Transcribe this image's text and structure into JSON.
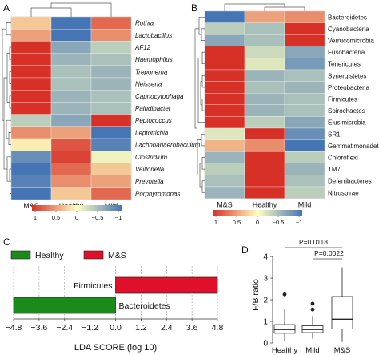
{
  "chart_data": [
    {
      "panel": "A",
      "type": "heatmap",
      "columns": [
        "M&S",
        "Healthy",
        "Mild"
      ],
      "rows": [
        "Rothia",
        "Lactobacillus",
        "AF12",
        "Haemophilus",
        "Treponema",
        "Neisseria",
        "Capnocytophaga",
        "Paludibacter",
        "Peptococcus",
        "Leptotrichia",
        "Lachnoanaerobaculum",
        "Clostridium",
        "Veillonella",
        "Prevotella",
        "Porphyromonas"
      ],
      "values": [
        [
          0.3,
          -1.1,
          0.8
        ],
        [
          0.5,
          -1.1,
          0.6
        ],
        [
          1.1,
          -0.7,
          -0.4
        ],
        [
          1.1,
          -0.6,
          -0.5
        ],
        [
          1.1,
          -0.5,
          -0.6
        ],
        [
          1.1,
          -0.5,
          -0.6
        ],
        [
          1.1,
          -0.6,
          -0.5
        ],
        [
          1.1,
          -0.6,
          -0.5
        ],
        [
          -0.4,
          -0.7,
          1.1
        ],
        [
          0.6,
          0.5,
          -1.1
        ],
        [
          0.1,
          0.9,
          -1.0
        ],
        [
          -0.9,
          1.0,
          -0.1
        ],
        [
          -1.1,
          0.8,
          0.3
        ],
        [
          -1.0,
          0.6,
          0.5
        ],
        [
          -1.1,
          0.3,
          0.8
        ]
      ],
      "legend": {
        "ticks": [
          "1",
          "0.5",
          "0",
          "−0.5",
          "−1"
        ]
      }
    },
    {
      "panel": "B",
      "type": "heatmap",
      "columns": [
        "M&S",
        "Healthy",
        "Mild"
      ],
      "rows": [
        "Bacteroidetes",
        "Cyanobacteria",
        "Verrucomicrobia",
        "Fusobacteria",
        "Tenericutes",
        "Synergistetes",
        "Proteobacteria",
        "Firmicutes",
        "Spirochaetes",
        "Elusimicrobia",
        "SR1",
        "Gemmatimonadetes",
        "Chloroflexi",
        "TM7",
        "Deferribacteres",
        "Nitrospirae"
      ],
      "values": [
        [
          -1.1,
          0.5,
          0.6
        ],
        [
          -0.4,
          -0.5,
          1.1
        ],
        [
          -0.7,
          -0.5,
          1.1
        ],
        [
          1.1,
          -0.3,
          -0.7
        ],
        [
          1.1,
          -0.2,
          -0.8
        ],
        [
          1.1,
          -0.6,
          -0.5
        ],
        [
          1.1,
          -0.5,
          -0.6
        ],
        [
          1.1,
          -0.6,
          -0.5
        ],
        [
          1.1,
          -0.6,
          -0.5
        ],
        [
          1.1,
          -0.4,
          -0.7
        ],
        [
          -0.2,
          1.1,
          -0.9
        ],
        [
          0.4,
          0.6,
          -1.1
        ],
        [
          -0.6,
          1.1,
          -0.4
        ],
        [
          -0.4,
          1.1,
          -0.6
        ],
        [
          -0.5,
          1.1,
          -0.5
        ],
        [
          -0.6,
          1.1,
          -0.4
        ]
      ],
      "legend": {
        "ticks": [
          "1",
          "0.5",
          "0",
          "−0.5",
          "−1"
        ]
      }
    },
    {
      "panel": "C",
      "type": "bar",
      "orientation": "horizontal",
      "legend": [
        {
          "name": "Healthy",
          "color": "#1a8a1a"
        },
        {
          "name": "M&S",
          "color": "#e0102a"
        }
      ],
      "categories": [
        "Firmicutes",
        "Bacteroidetes"
      ],
      "values": [
        4.8,
        -4.8
      ],
      "xlabel": "LDA SCORE (log 10)",
      "xlim": [
        -4.8,
        4.8
      ],
      "xticks": [
        "−4.8",
        "−3.6",
        "−2.4",
        "−1.2",
        "0.0",
        "1.2",
        "2.4",
        "3.6",
        "4.8"
      ]
    },
    {
      "panel": "D",
      "type": "box",
      "categories": [
        "Healthy",
        "Mild",
        "M&S"
      ],
      "ylabel": "F/B ratio",
      "ylim": [
        0,
        4.3
      ],
      "yticks": [
        "0",
        "1",
        "2",
        "3",
        "4"
      ],
      "boxes": [
        {
          "q1": 0.45,
          "median": 0.62,
          "q3": 0.85,
          "whisker_low": 0.1,
          "whisker_high": 1.55,
          "outliers": [
            2.25
          ]
        },
        {
          "q1": 0.48,
          "median": 0.62,
          "q3": 0.8,
          "whisker_low": 0.2,
          "whisker_high": 1.25,
          "outliers": [
            1.55,
            1.82
          ]
        },
        {
          "q1": 0.65,
          "median": 1.1,
          "q3": 2.15,
          "whisker_low": 0.05,
          "whisker_high": 3.5,
          "outliers": []
        }
      ],
      "annotations": [
        "P=0.0118",
        "P=0.0022"
      ]
    }
  ],
  "panel_labels": [
    "A",
    "B",
    "C",
    "D"
  ],
  "colors": {
    "high": "#d73027",
    "mid": "#ffffbf",
    "low": "#4575b4",
    "healthy_bar": "#1a8a1a",
    "ms_bar": "#e0102a"
  }
}
